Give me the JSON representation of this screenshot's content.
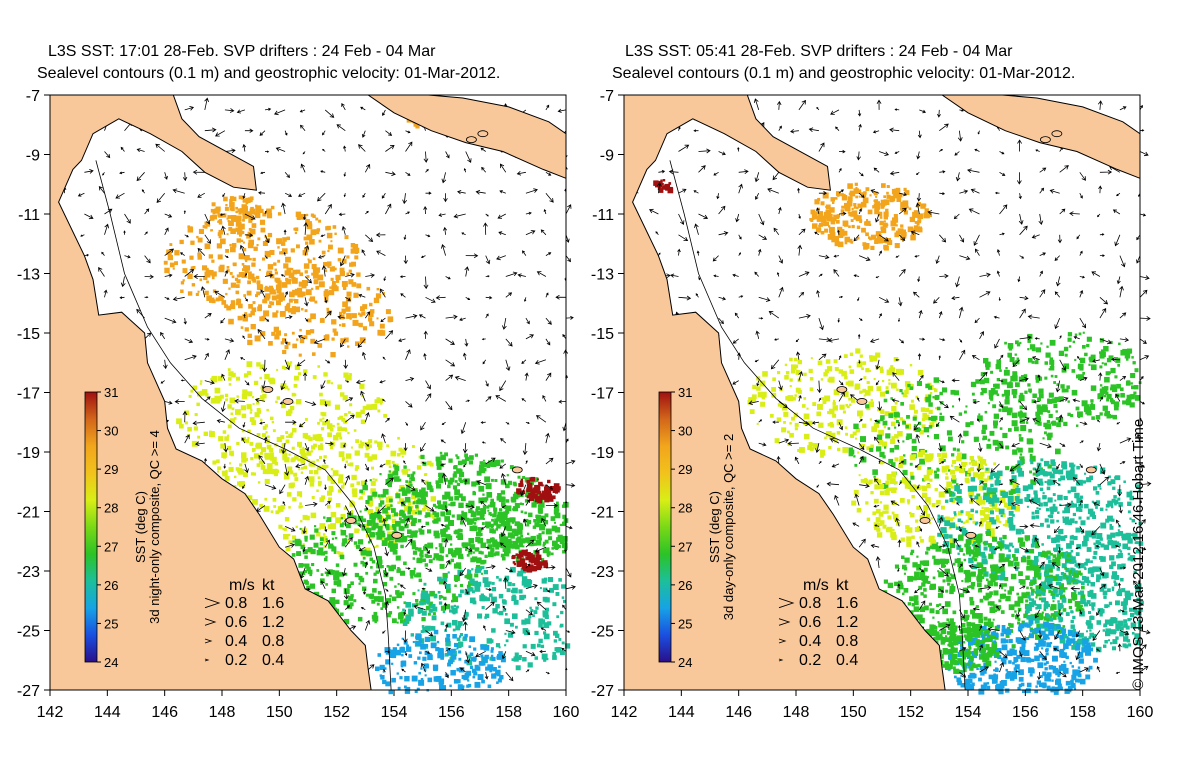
{
  "panels": [
    {
      "id": "left",
      "title_line1": "L3S SST: 17:01 28-Feb. SVP drifters : 24 Feb - 04 Mar",
      "title_line2": "Sealevel contours (0.1 m) and geostrophic velocity: 01-Mar-2012.",
      "colorbar_caption": "3d night-only composite, QC >= 4",
      "colorbar_label": "SST (deg C)"
    },
    {
      "id": "right",
      "title_line1": "L3S SST: 05:41 28-Feb. SVP drifters : 24 Feb - 04 Mar",
      "title_line2": "Sealevel contours (0.1 m) and geostrophic velocity: 01-Mar-2012.",
      "colorbar_caption": "3d day-only composite, QC >= 2",
      "colorbar_label": "SST (deg C)"
    }
  ],
  "axes": {
    "x_ticks": [
      "142",
      "144",
      "146",
      "148",
      "150",
      "152",
      "154",
      "156",
      "158",
      "160"
    ],
    "y_ticks": [
      "-7",
      "-9",
      "-11",
      "-13",
      "-15",
      "-17",
      "-19",
      "-21",
      "-23",
      "-25",
      "-27"
    ],
    "lon_range": [
      142,
      160
    ],
    "lat_range": [
      -27,
      -7
    ]
  },
  "colorbar": {
    "ticks": [
      "31",
      "30",
      "29",
      "28",
      "27",
      "26",
      "25",
      "24"
    ],
    "range": [
      24,
      31
    ]
  },
  "velocity_legend": {
    "header_ms": "m/s",
    "header_kt": "kt",
    "rows": [
      {
        "ms": "0.8",
        "kt": "1.6"
      },
      {
        "ms": "0.6",
        "kt": "1.2"
      },
      {
        "ms": "0.4",
        "kt": "0.8"
      },
      {
        "ms": "0.2",
        "kt": "0.4"
      }
    ]
  },
  "credit": "© IMOS 13-Mar-2012 16:46 Hobart Time",
  "colors": {
    "land": "#f9c89a",
    "sst_warm": "#f2a51c",
    "sst_mid": "#d9ee16",
    "sst_green": "#2cc326",
    "sst_teal": "#1cbf9a",
    "sst_blue": "#17a3e5",
    "sst_hot": "#a01010"
  }
}
